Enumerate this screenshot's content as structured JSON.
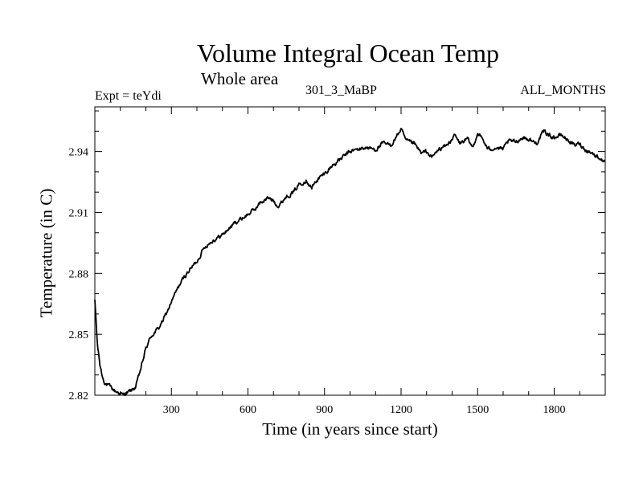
{
  "chart_data": {
    "type": "line",
    "title": "Volume Integral Ocean Temp",
    "subtitle": "Whole area",
    "annotations": {
      "experiment": "Expt = teYdi",
      "run": "301_3_MaBP",
      "months": "ALL_MONTHS"
    },
    "xlabel": "Time (in years since start)",
    "ylabel": "Temperature (in C)",
    "xlim": [
      0,
      2000
    ],
    "ylim": [
      2.82,
      2.962
    ],
    "xticks": [
      300,
      600,
      900,
      1200,
      1500,
      1800
    ],
    "xtick_labels": [
      "300",
      "600",
      "900",
      "1200",
      "1500",
      "1800"
    ],
    "yticks": [
      2.82,
      2.85,
      2.88,
      2.91,
      2.94
    ],
    "ytick_labels": [
      "2.82",
      "2.85",
      "2.88",
      "2.91",
      "2.94"
    ],
    "grid": false,
    "series": [
      {
        "name": "Volume integral ocean temperature",
        "color": "#000000",
        "x": [
          0,
          10,
          20,
          30,
          40,
          60,
          80,
          100,
          110,
          120,
          140,
          160,
          180,
          200,
          220,
          250,
          280,
          300,
          330,
          360,
          400,
          430,
          460,
          500,
          550,
          600,
          630,
          650,
          680,
          700,
          720,
          750,
          780,
          800,
          830,
          850,
          870,
          900,
          930,
          960,
          1000,
          1030,
          1060,
          1100,
          1130,
          1160,
          1180,
          1200,
          1220,
          1250,
          1280,
          1300,
          1320,
          1340,
          1360,
          1380,
          1410,
          1430,
          1460,
          1480,
          1500,
          1520,
          1540,
          1570,
          1600,
          1620,
          1650,
          1680,
          1700,
          1730,
          1760,
          1780,
          1800,
          1830,
          1860,
          1880,
          1900,
          1920,
          1940,
          1960,
          1980,
          1990,
          2000
        ],
        "values": [
          2.867,
          2.845,
          2.835,
          2.829,
          2.826,
          2.824,
          2.822,
          2.821,
          2.82,
          2.821,
          2.822,
          2.824,
          2.833,
          2.843,
          2.849,
          2.853,
          2.86,
          2.866,
          2.874,
          2.88,
          2.886,
          2.893,
          2.896,
          2.899,
          2.905,
          2.909,
          2.912,
          2.915,
          2.917,
          2.916,
          2.913,
          2.918,
          2.92,
          2.924,
          2.926,
          2.922,
          2.926,
          2.929,
          2.933,
          2.936,
          2.94,
          2.941,
          2.942,
          2.941,
          2.944,
          2.943,
          2.947,
          2.951,
          2.945,
          2.944,
          2.939,
          2.94,
          2.937,
          2.94,
          2.942,
          2.943,
          2.948,
          2.944,
          2.946,
          2.942,
          2.949,
          2.946,
          2.941,
          2.942,
          2.941,
          2.945,
          2.945,
          2.947,
          2.946,
          2.944,
          2.95,
          2.948,
          2.947,
          2.948,
          2.945,
          2.943,
          2.944,
          2.941,
          2.94,
          2.938,
          2.937,
          2.935,
          2.936
        ]
      }
    ]
  }
}
